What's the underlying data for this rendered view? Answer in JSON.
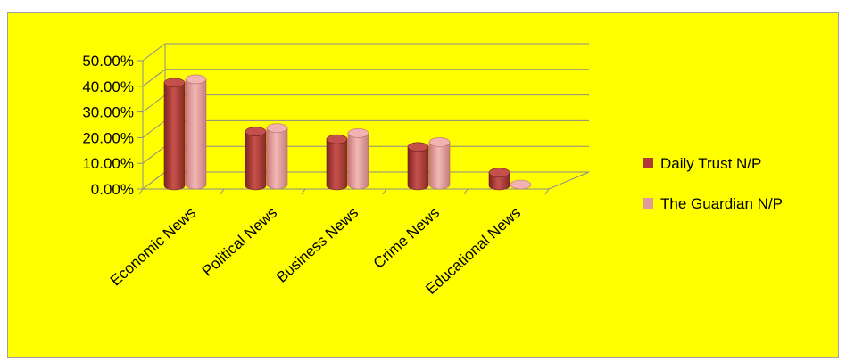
{
  "chart_data": {
    "type": "bar",
    "style": "3d-cylinder",
    "categories": [
      "Economic News",
      "Political News",
      "Business News",
      "Crime News",
      "Educational News"
    ],
    "series": [
      {
        "name": "Daily Trust N/P",
        "color": "#b03a36",
        "values": [
          0.4,
          0.21,
          0.18,
          0.15,
          0.05
        ]
      },
      {
        "name": "The Guardian N/P",
        "color": "#e09a9a",
        "values": [
          0.41,
          0.22,
          0.2,
          0.165,
          0.0
        ]
      }
    ],
    "ylim": [
      0,
      0.5
    ],
    "yticks": [
      "0.00%",
      "10.00%",
      "20.00%",
      "30.00%",
      "40.00%",
      "50.00%"
    ],
    "ytick_values": [
      0,
      0.1,
      0.2,
      0.3,
      0.4,
      0.5
    ],
    "grid": true,
    "legend_position": "right",
    "background_color": "#ffff00",
    "title": "",
    "xlabel": "",
    "ylabel": ""
  }
}
